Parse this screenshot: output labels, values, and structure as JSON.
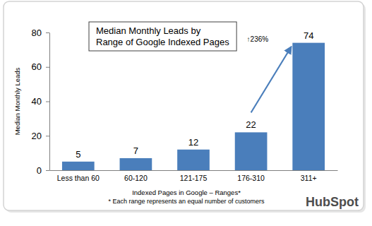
{
  "chart_data": {
    "type": "bar",
    "title": "Median Monthly Leads by Range of Google Indexed Pages",
    "x_label": "Indexed Pages in Google – Ranges*",
    "y_label": "Median Monthly Leads",
    "categories": [
      "Less than 60",
      "60-120",
      "121-175",
      "176-310",
      "311+"
    ],
    "values": [
      5,
      7,
      12,
      22,
      74
    ],
    "color": "#4a7ebb",
    "ylim": [
      0,
      80
    ],
    "yticks": [
      0,
      20,
      40,
      60,
      80
    ],
    "grid": false,
    "data_labels": true,
    "annotations": [
      "↑236%",
      "* Each range represents an equal number of customers",
      "HubSpot"
    ]
  }
}
